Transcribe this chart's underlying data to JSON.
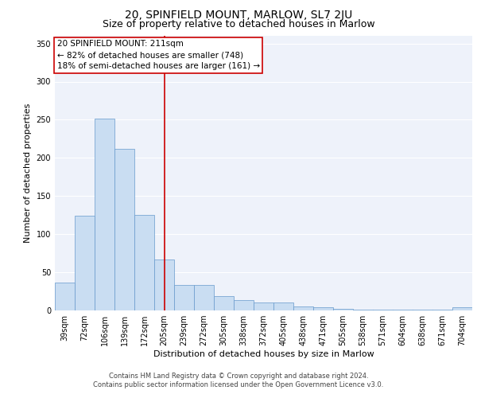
{
  "title_line1": "20, SPINFIELD MOUNT, MARLOW, SL7 2JU",
  "title_line2": "Size of property relative to detached houses in Marlow",
  "xlabel": "Distribution of detached houses by size in Marlow",
  "ylabel": "Number of detached properties",
  "categories": [
    "39sqm",
    "72sqm",
    "106sqm",
    "139sqm",
    "172sqm",
    "205sqm",
    "239sqm",
    "272sqm",
    "305sqm",
    "338sqm",
    "372sqm",
    "405sqm",
    "438sqm",
    "471sqm",
    "505sqm",
    "538sqm",
    "571sqm",
    "604sqm",
    "638sqm",
    "671sqm",
    "704sqm"
  ],
  "values": [
    37,
    124,
    252,
    212,
    125,
    67,
    33,
    33,
    19,
    14,
    10,
    10,
    5,
    4,
    2,
    1,
    1,
    1,
    1,
    1,
    4
  ],
  "bar_color": "#c9ddf2",
  "bar_edge_color": "#6699cc",
  "vline_index": 5,
  "vline_color": "#cc0000",
  "annotation_line1": "20 SPINFIELD MOUNT: 211sqm",
  "annotation_line2": "← 82% of detached houses are smaller (748)",
  "annotation_line3": "18% of semi-detached houses are larger (161) →",
  "annotation_box_facecolor": "#ffffff",
  "annotation_box_edgecolor": "#cc0000",
  "ylim": [
    0,
    360
  ],
  "yticks": [
    0,
    50,
    100,
    150,
    200,
    250,
    300,
    350
  ],
  "bg_color": "#eef2fa",
  "footer_line1": "Contains HM Land Registry data © Crown copyright and database right 2024.",
  "footer_line2": "Contains public sector information licensed under the Open Government Licence v3.0.",
  "title1_fontsize": 10,
  "title2_fontsize": 9,
  "ylabel_fontsize": 8,
  "xlabel_fontsize": 8,
  "tick_fontsize": 7,
  "annot_fontsize": 7.5,
  "footer_fontsize": 6
}
